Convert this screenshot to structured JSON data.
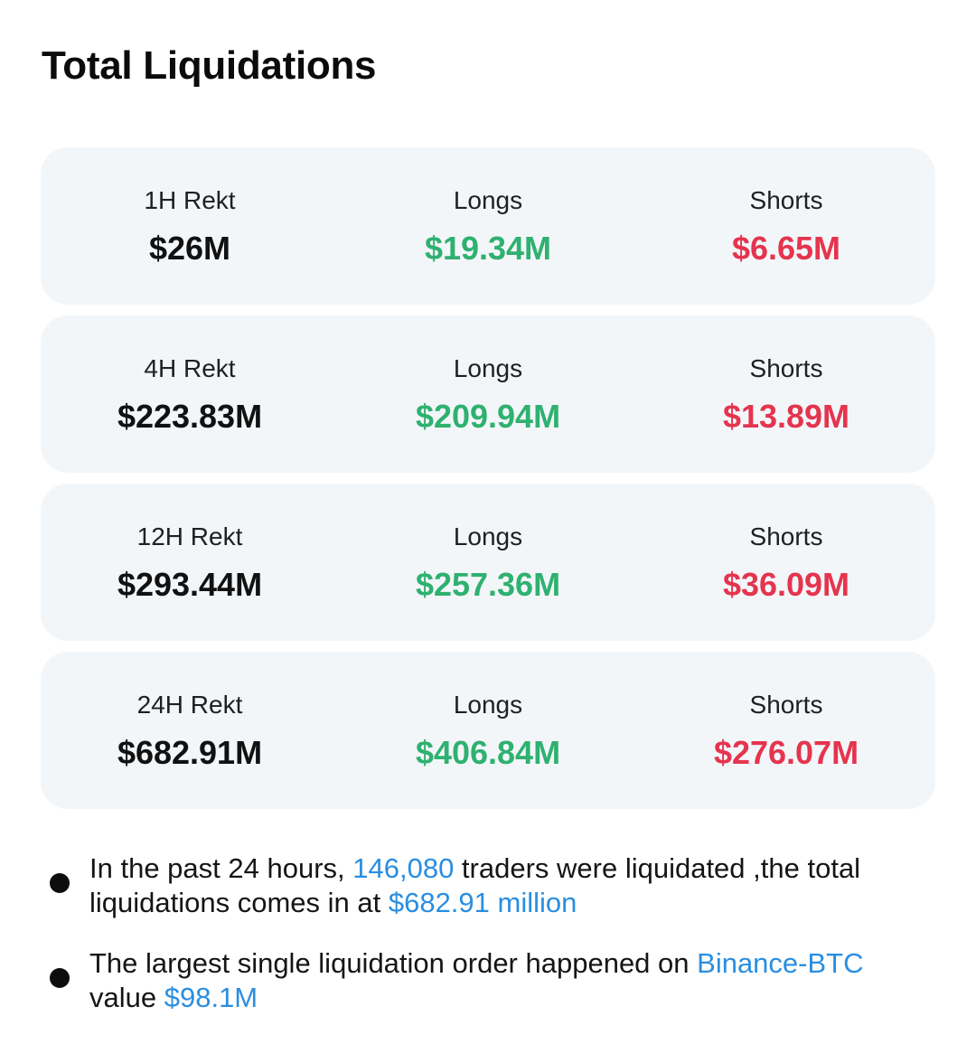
{
  "title": "Total Liquidations",
  "colors": {
    "card_background": "#f3f6f9",
    "longs": "#2fb170",
    "shorts": "#e5344e",
    "highlight": "#2a8ee0"
  },
  "cards": [
    {
      "period": "1H Rekt",
      "total": "$26M",
      "longs_label": "Longs",
      "longs": "$19.34M",
      "shorts_label": "Shorts",
      "shorts": "$6.65M"
    },
    {
      "period": "4H Rekt",
      "total": "$223.83M",
      "longs_label": "Longs",
      "longs": "$209.94M",
      "shorts_label": "Shorts",
      "shorts": "$13.89M"
    },
    {
      "period": "12H Rekt",
      "total": "$293.44M",
      "longs_label": "Longs",
      "longs": "$257.36M",
      "shorts_label": "Shorts",
      "shorts": "$36.09M"
    },
    {
      "period": "24H Rekt",
      "total": "$682.91M",
      "longs_label": "Longs",
      "longs": "$406.84M",
      "shorts_label": "Shorts",
      "shorts": "$276.07M"
    }
  ],
  "notes": [
    {
      "text_1": "In the past 24 hours, ",
      "traders": "146,080",
      "text_2": " traders were liquidated ,the total liquidations comes in at ",
      "amount": "$682.91 million"
    },
    {
      "text_1": "The largest single liquidation order happened on ",
      "exchange": "Binance-BTC",
      "text_2": " value ",
      "amount": "$98.1M"
    }
  ]
}
